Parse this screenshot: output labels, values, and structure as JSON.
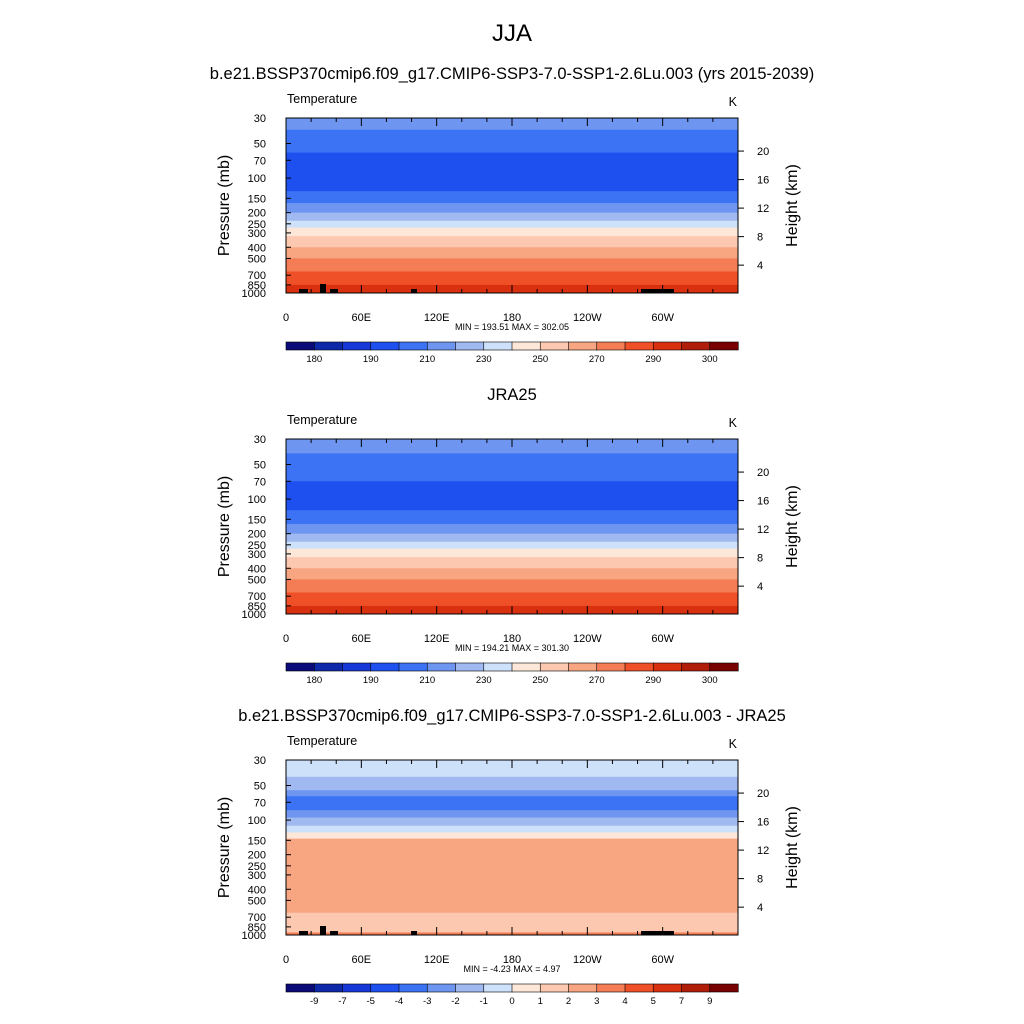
{
  "figure": {
    "title": "JJA"
  },
  "chart_data": [
    {
      "type": "heatmap",
      "title": "b.e21.BSSP370cmip6.f09_g17.CMIP6-SSP3-7.0-SSP1-2.6Lu.003 (yrs 2015-2039)",
      "left_label": "Temperature",
      "units": "K",
      "ylabel": "Pressure (mb)",
      "ylabel_right": "Height (km)",
      "x_ticks": [
        "0",
        "60E",
        "120E",
        "180",
        "120W",
        "60W"
      ],
      "y_ticks": [
        "30",
        "50",
        "70",
        "100",
        "150",
        "200",
        "250",
        "300",
        "400",
        "500",
        "700",
        "850",
        "1000"
      ],
      "y_ticks_right": [
        "20",
        "16",
        "12",
        "8",
        "4"
      ],
      "stats": "MIN = 193.51  MAX = 302.05",
      "colorbar": {
        "labels": [
          "180",
          "190",
          "210",
          "230",
          "250",
          "270",
          "290",
          "300"
        ],
        "colors": [
          "#0a0a78",
          "#0d28a8",
          "#1638d8",
          "#1e50f0",
          "#3c73f5",
          "#6e96f0",
          "#a0b9f0",
          "#cde1fa",
          "#fde7d8",
          "#fcc8b0",
          "#f8a582",
          "#f57d55",
          "#f05028",
          "#d93010",
          "#b01e0a",
          "#780000"
        ]
      },
      "layers": [
        {
          "p_top": 30,
          "p_bot": 38,
          "color": "#6e96f0"
        },
        {
          "p_top": 38,
          "p_bot": 60,
          "color": "#3c73f5"
        },
        {
          "p_top": 60,
          "p_bot": 130,
          "color": "#1e50f0"
        },
        {
          "p_top": 130,
          "p_bot": 165,
          "color": "#3c73f5"
        },
        {
          "p_top": 165,
          "p_bot": 200,
          "color": "#6e96f0"
        },
        {
          "p_top": 200,
          "p_bot": 235,
          "color": "#a0b9f0"
        },
        {
          "p_top": 235,
          "p_bot": 270,
          "color": "#cde1fa"
        },
        {
          "p_top": 270,
          "p_bot": 320,
          "color": "#fde7d8"
        },
        {
          "p_top": 320,
          "p_bot": 400,
          "color": "#fcc8b0"
        },
        {
          "p_top": 400,
          "p_bot": 500,
          "color": "#f8a582"
        },
        {
          "p_top": 500,
          "p_bot": 650,
          "color": "#f57d55"
        },
        {
          "p_top": 650,
          "p_bot": 850,
          "color": "#f05028"
        },
        {
          "p_top": 850,
          "p_bot": 1000,
          "color": "#d93010"
        }
      ],
      "topography": true
    },
    {
      "type": "heatmap",
      "title": "JRA25",
      "left_label": "Temperature",
      "units": "K",
      "ylabel": "Pressure (mb)",
      "ylabel_right": "Height (km)",
      "x_ticks": [
        "0",
        "60E",
        "120E",
        "180",
        "120W",
        "60W"
      ],
      "y_ticks": [
        "30",
        "50",
        "70",
        "100",
        "150",
        "200",
        "250",
        "300",
        "400",
        "500",
        "700",
        "850",
        "1000"
      ],
      "y_ticks_right": [
        "20",
        "16",
        "12",
        "8",
        "4"
      ],
      "stats": "MIN = 194.21  MAX = 301.30",
      "colorbar": {
        "labels": [
          "180",
          "190",
          "210",
          "230",
          "250",
          "270",
          "290",
          "300"
        ],
        "colors": [
          "#0a0a78",
          "#0d28a8",
          "#1638d8",
          "#1e50f0",
          "#3c73f5",
          "#6e96f0",
          "#a0b9f0",
          "#cde1fa",
          "#fde7d8",
          "#fcc8b0",
          "#f8a582",
          "#f57d55",
          "#f05028",
          "#d93010",
          "#b01e0a",
          "#780000"
        ]
      },
      "layers": [
        {
          "p_top": 30,
          "p_bot": 40,
          "color": "#6e96f0"
        },
        {
          "p_top": 40,
          "p_bot": 70,
          "color": "#3c73f5"
        },
        {
          "p_top": 70,
          "p_bot": 125,
          "color": "#1e50f0"
        },
        {
          "p_top": 125,
          "p_bot": 165,
          "color": "#3c73f5"
        },
        {
          "p_top": 165,
          "p_bot": 200,
          "color": "#6e96f0"
        },
        {
          "p_top": 200,
          "p_bot": 235,
          "color": "#a0b9f0"
        },
        {
          "p_top": 235,
          "p_bot": 270,
          "color": "#cde1fa"
        },
        {
          "p_top": 270,
          "p_bot": 320,
          "color": "#fde7d8"
        },
        {
          "p_top": 320,
          "p_bot": 400,
          "color": "#fcc8b0"
        },
        {
          "p_top": 400,
          "p_bot": 500,
          "color": "#f8a582"
        },
        {
          "p_top": 500,
          "p_bot": 650,
          "color": "#f57d55"
        },
        {
          "p_top": 650,
          "p_bot": 850,
          "color": "#f05028"
        },
        {
          "p_top": 850,
          "p_bot": 1000,
          "color": "#d93010"
        }
      ],
      "topography": false
    },
    {
      "type": "heatmap",
      "title": "b.e21.BSSP370cmip6.f09_g17.CMIP6-SSP3-7.0-SSP1-2.6Lu.003 - JRA25",
      "left_label": "Temperature",
      "units": "K",
      "ylabel": "Pressure (mb)",
      "ylabel_right": "Height (km)",
      "x_ticks": [
        "0",
        "60E",
        "120E",
        "180",
        "120W",
        "60W"
      ],
      "y_ticks": [
        "30",
        "50",
        "70",
        "100",
        "150",
        "200",
        "250",
        "300",
        "400",
        "500",
        "700",
        "850",
        "1000"
      ],
      "y_ticks_right": [
        "20",
        "16",
        "12",
        "8",
        "4"
      ],
      "stats": "MIN =  -4.23  MAX =   4.97",
      "colorbar": {
        "labels": [
          "-9",
          "-7",
          "-5",
          "-4",
          "-3",
          "-2",
          "-1",
          "0",
          "1",
          "2",
          "3",
          "4",
          "5",
          "7",
          "9"
        ],
        "colors": [
          "#0a0a78",
          "#0d28a8",
          "#1638d8",
          "#1e50f0",
          "#3c73f5",
          "#6e96f0",
          "#a0b9f0",
          "#cde1fa",
          "#fde7d8",
          "#fcc8b0",
          "#f8a582",
          "#f57d55",
          "#f05028",
          "#d93010",
          "#b01e0a",
          "#780000"
        ]
      },
      "layers": [
        {
          "p_top": 30,
          "p_bot": 42,
          "color": "#cde1fa"
        },
        {
          "p_top": 42,
          "p_bot": 55,
          "color": "#a0b9f0"
        },
        {
          "p_top": 55,
          "p_bot": 62,
          "color": "#6e96f0"
        },
        {
          "p_top": 62,
          "p_bot": 82,
          "color": "#3c73f5"
        },
        {
          "p_top": 82,
          "p_bot": 95,
          "color": "#6e96f0"
        },
        {
          "p_top": 95,
          "p_bot": 112,
          "color": "#a0b9f0"
        },
        {
          "p_top": 112,
          "p_bot": 128,
          "color": "#cde1fa"
        },
        {
          "p_top": 128,
          "p_bot": 145,
          "color": "#fde7d8"
        },
        {
          "p_top": 145,
          "p_bot": 640,
          "color": "#f8a582"
        },
        {
          "p_top": 640,
          "p_bot": 950,
          "color": "#fcc8b0"
        },
        {
          "p_top": 950,
          "p_bot": 1000,
          "color": "#f57d55"
        }
      ],
      "topography": true
    }
  ]
}
